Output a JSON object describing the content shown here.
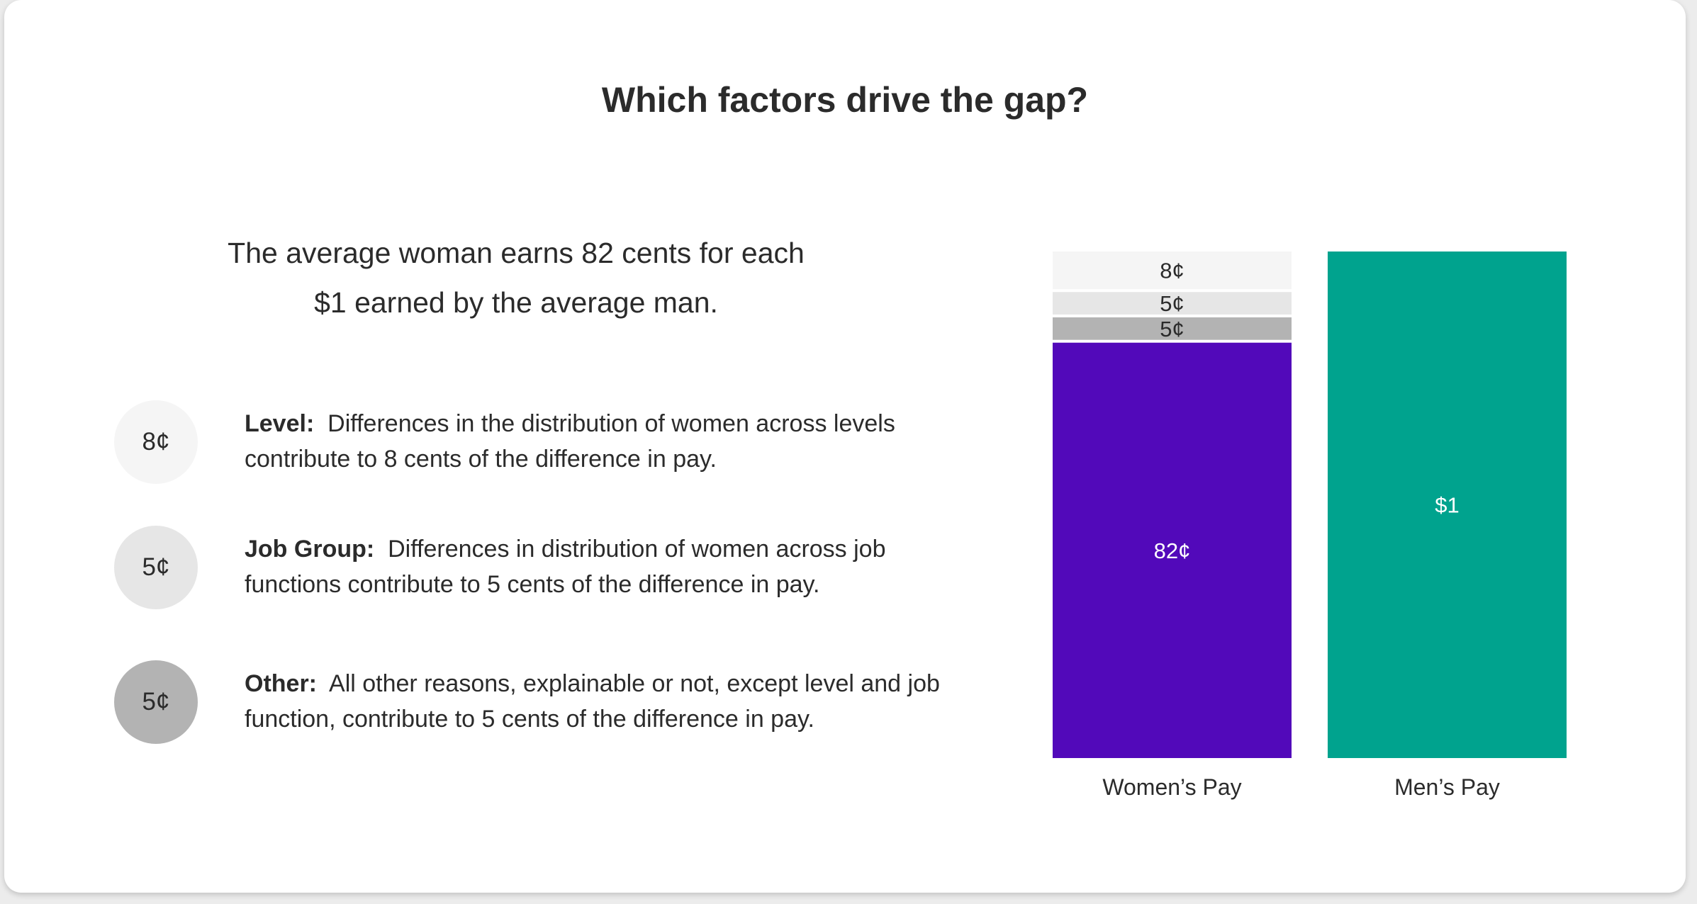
{
  "title": "Which factors drive the gap?",
  "summary": {
    "line1": "The average woman earns 82 cents for each",
    "line2": "$1 earned by the average man."
  },
  "factors": [
    {
      "badge": "8¢",
      "name": "Level:",
      "text": "Differences in the distribution of women across levels contribute to 8 cents of the difference in pay.",
      "color": "#f5f5f5"
    },
    {
      "badge": "5¢",
      "name": "Job Group:",
      "text": "Differences in distribution of women across job functions contribute to 5 cents of the difference in pay.",
      "color": "#e6e6e6"
    },
    {
      "badge": "5¢",
      "name": "Other:",
      "text": "All other reasons, explainable or not, except level and job function, contribute to 5 cents of the difference in pay.",
      "color": "#b3b3b3"
    }
  ],
  "chart_data": {
    "type": "bar",
    "stacked": true,
    "categories": [
      "Women’s Pay",
      "Men’s Pay"
    ],
    "ylim": [
      0,
      100
    ],
    "grid": false,
    "series": [
      {
        "key": "pay",
        "values": [
          82,
          100
        ],
        "labels": [
          "82¢",
          "$1"
        ],
        "colors": [
          "#5209ba",
          "#00a38e"
        ],
        "label_color": "#ffffff"
      },
      {
        "key": "other",
        "values": [
          5,
          0
        ],
        "labels": [
          "5¢",
          ""
        ],
        "colors": [
          "#b3b3b3",
          "#b3b3b3"
        ],
        "label_color": "#2b2b2b"
      },
      {
        "key": "job_group",
        "values": [
          5,
          0
        ],
        "labels": [
          "5¢",
          ""
        ],
        "colors": [
          "#e6e6e6",
          "#e6e6e6"
        ],
        "label_color": "#2b2b2b"
      },
      {
        "key": "level",
        "values": [
          8,
          0
        ],
        "labels": [
          "8¢",
          ""
        ],
        "colors": [
          "#f5f5f5",
          "#f5f5f5"
        ],
        "label_color": "#2b2b2b"
      }
    ]
  }
}
